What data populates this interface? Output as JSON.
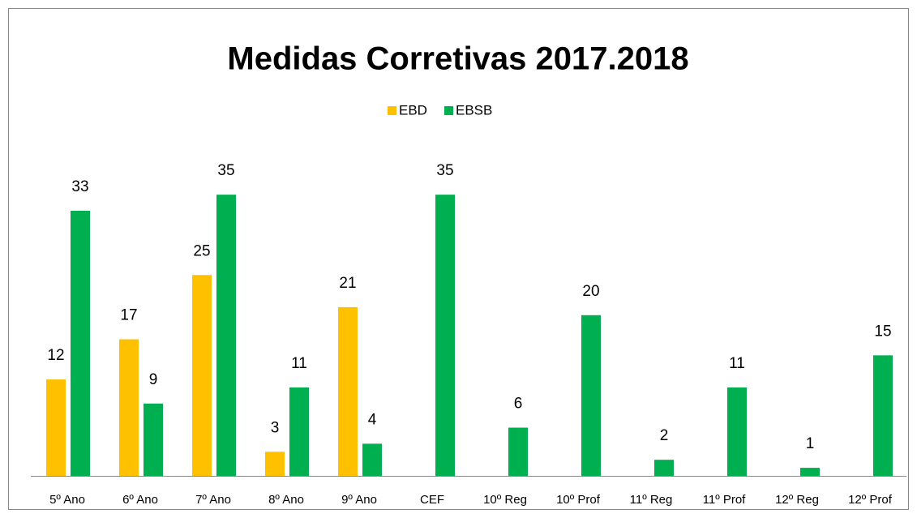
{
  "chart_data": {
    "type": "bar",
    "title": "Medidas Corretivas 2017.2018",
    "categories": [
      "5º Ano",
      "6º Ano",
      "7º Ano",
      "8º Ano",
      "9º Ano",
      "CEF",
      "10º Reg",
      "10º Prof",
      "11º Reg",
      "11º Prof",
      "12º Reg",
      "12º Prof"
    ],
    "series": [
      {
        "name": "EBD",
        "color": "#FFC000",
        "values": [
          12,
          17,
          25,
          3,
          21,
          null,
          null,
          null,
          null,
          null,
          null,
          null
        ]
      },
      {
        "name": "EBSB",
        "color": "#00B050",
        "values": [
          33,
          9,
          35,
          11,
          4,
          35,
          6,
          20,
          2,
          11,
          1,
          15
        ]
      }
    ],
    "legend": "top"
  }
}
